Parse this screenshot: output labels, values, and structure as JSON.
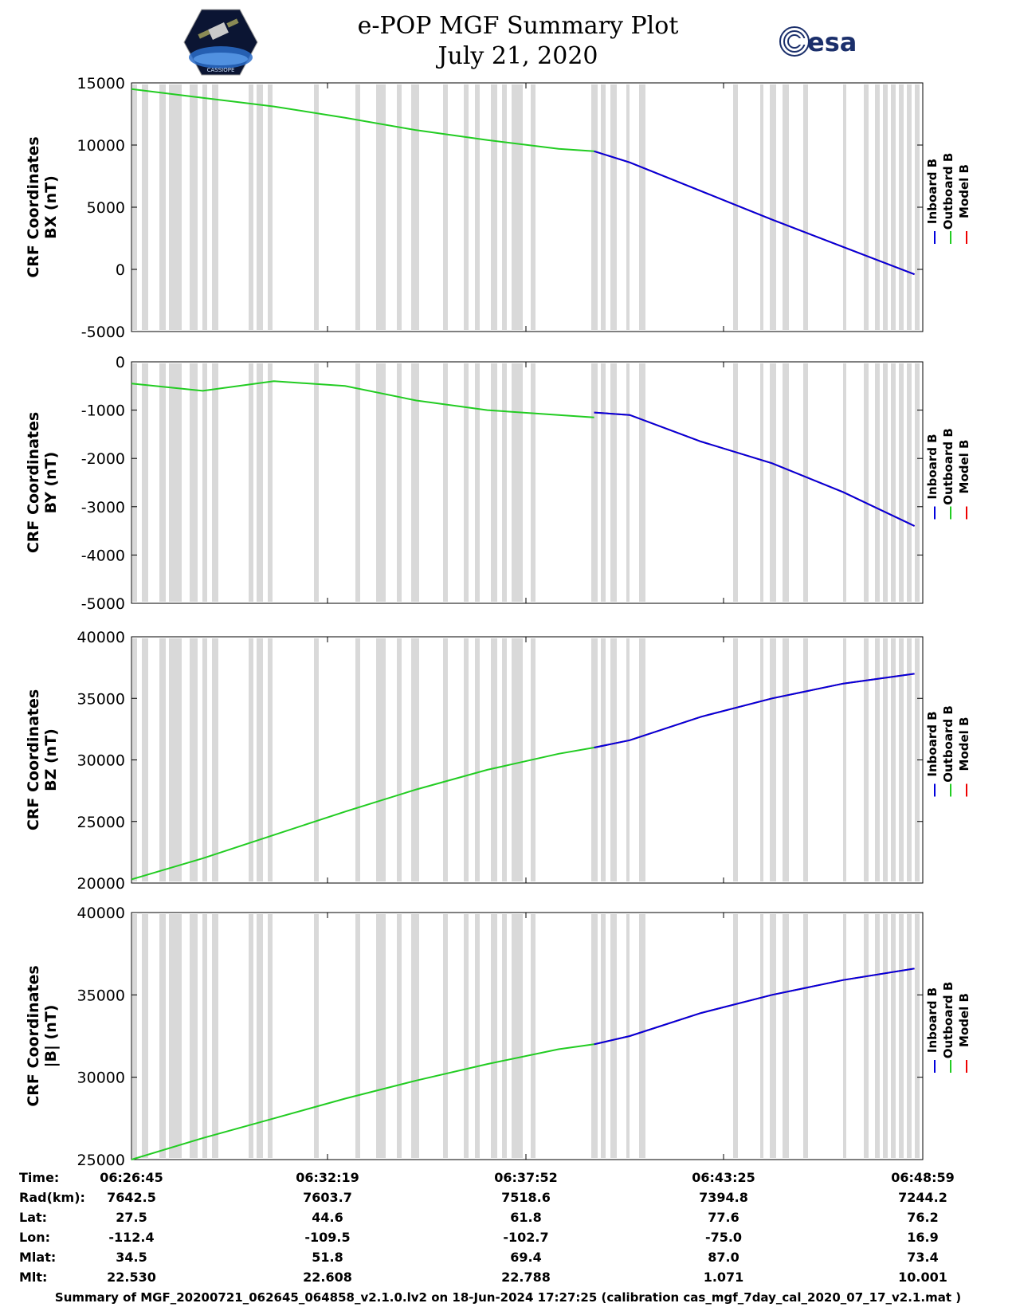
{
  "header": {
    "title_line1": "e-POP MGF Summary Plot",
    "title_line2": "July 21, 2020",
    "logo_left": "CASSIOPE",
    "logo_right": "esa"
  },
  "legend": {
    "inboard": "Inboard B",
    "outboard": "Outboard B",
    "model": "Model B"
  },
  "colors": {
    "inboard": "#0000dd",
    "outboard": "#22cc22",
    "model": "#ee0000",
    "gap_band": "#d9d9d9"
  },
  "chart_data": [
    {
      "type": "line",
      "ylabel_line1": "CRF Coordinates",
      "ylabel_line2": "BX (nT)",
      "ylim": [
        -5000,
        15000
      ],
      "yticks": [
        -5000,
        0,
        5000,
        10000,
        15000
      ],
      "x_minutes": [
        0,
        2,
        4,
        6,
        8,
        10,
        12,
        13,
        14,
        16,
        18,
        20,
        22
      ],
      "series": [
        {
          "name": "Outboard B",
          "x": [
            0,
            2,
            4,
            6,
            8,
            10,
            12,
            13
          ],
          "y": [
            14500,
            13800,
            13100,
            12200,
            11200,
            10400,
            9700,
            9500
          ]
        },
        {
          "name": "Inboard B",
          "x": [
            13,
            14,
            16,
            18,
            20,
            22
          ],
          "y": [
            9500,
            8600,
            6300,
            4000,
            1800,
            -400
          ]
        },
        {
          "name": "Model B",
          "x": [
            13,
            14,
            16,
            18,
            20,
            22
          ],
          "y": [
            9500,
            8600,
            6300,
            4000,
            1800,
            -400
          ]
        }
      ]
    },
    {
      "type": "line",
      "ylabel_line1": "CRF Coordinates",
      "ylabel_line2": "BY (nT)",
      "ylim": [
        -5000,
        0
      ],
      "yticks": [
        -5000,
        -4000,
        -3000,
        -2000,
        -1000,
        0
      ],
      "series": [
        {
          "name": "Outboard B",
          "x": [
            0,
            2,
            4,
            6,
            8,
            10,
            12,
            13
          ],
          "y": [
            -450,
            -600,
            -400,
            -500,
            -800,
            -1000,
            -1100,
            -1150
          ]
        },
        {
          "name": "Inboard B",
          "x": [
            13,
            14,
            16,
            18,
            20,
            22
          ],
          "y": [
            -1050,
            -1100,
            -1650,
            -2100,
            -2700,
            -3400
          ]
        },
        {
          "name": "Model B",
          "x": [
            13,
            14,
            16,
            18,
            20,
            22
          ],
          "y": [
            -1050,
            -1100,
            -1650,
            -2100,
            -2700,
            -3400
          ]
        }
      ]
    },
    {
      "type": "line",
      "ylabel_line1": "CRF Coordinates",
      "ylabel_line2": "BZ (nT)",
      "ylim": [
        20000,
        40000
      ],
      "yticks": [
        20000,
        25000,
        30000,
        35000,
        40000
      ],
      "series": [
        {
          "name": "Outboard B",
          "x": [
            0,
            2,
            4,
            6,
            8,
            10,
            12,
            13
          ],
          "y": [
            20300,
            22000,
            23900,
            25800,
            27600,
            29200,
            30500,
            31000
          ]
        },
        {
          "name": "Inboard B",
          "x": [
            13,
            14,
            16,
            18,
            20,
            22
          ],
          "y": [
            31000,
            31600,
            33500,
            35000,
            36200,
            37000
          ]
        },
        {
          "name": "Model B",
          "x": [
            13,
            14,
            16,
            18,
            20,
            22
          ],
          "y": [
            31000,
            31600,
            33500,
            35000,
            36200,
            37000
          ]
        }
      ]
    },
    {
      "type": "line",
      "ylabel_line1": "CRF Coordinates",
      "ylabel_line2": "|B| (nT)",
      "ylim": [
        25000,
        40000
      ],
      "yticks": [
        25000,
        30000,
        35000,
        40000
      ],
      "series": [
        {
          "name": "Outboard B",
          "x": [
            0,
            2,
            4,
            6,
            8,
            10,
            12,
            13
          ],
          "y": [
            25000,
            26300,
            27500,
            28700,
            29800,
            30800,
            31700,
            32000
          ]
        },
        {
          "name": "Inboard B",
          "x": [
            13,
            14,
            16,
            18,
            20,
            22
          ],
          "y": [
            32000,
            32500,
            33900,
            35000,
            35900,
            36600
          ]
        },
        {
          "name": "Model B",
          "x": [
            13,
            14,
            16,
            18,
            20,
            22
          ],
          "y": [
            32000,
            32500,
            33900,
            35000,
            35900,
            36600
          ]
        }
      ]
    }
  ],
  "ephemeris": {
    "row_labels": [
      "Time:",
      "Rad(km):",
      "Lat:",
      "Lon:",
      "Mlat:",
      "Mlt:"
    ],
    "columns": [
      [
        "06:26:45",
        "7642.5",
        "27.5",
        "-112.4",
        "34.5",
        "22.530"
      ],
      [
        "06:32:19",
        "7603.7",
        "44.6",
        "-109.5",
        "51.8",
        "22.608"
      ],
      [
        "06:37:52",
        "7518.6",
        "61.8",
        "-102.7",
        "69.4",
        "22.788"
      ],
      [
        "06:43:25",
        "7394.8",
        "77.6",
        "-75.0",
        "87.0",
        "1.071"
      ],
      [
        "06:48:59",
        "7244.2",
        "76.2",
        "16.9",
        "73.4",
        "10.001"
      ]
    ]
  },
  "footer": "Summary of MGF_20200721_062645_064858_v2.1.0.lv2 on 18-Jun-2024 17:27:25 (calibration cas_mgf_7day_cal_2020_07_17_v2.1.mat )"
}
